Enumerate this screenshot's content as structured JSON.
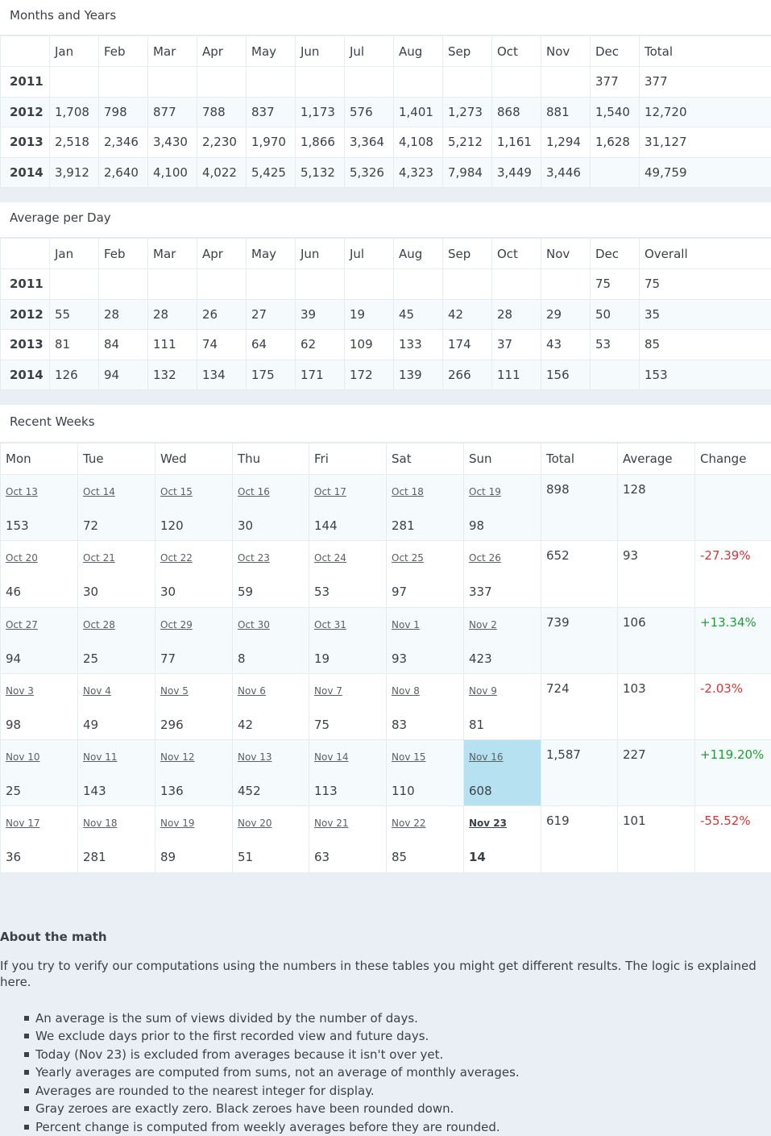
{
  "months_years": {
    "title": "Months and Years",
    "headers": [
      "",
      "Jan",
      "Feb",
      "Mar",
      "Apr",
      "May",
      "Jun",
      "Jul",
      "Aug",
      "Sep",
      "Oct",
      "Nov",
      "Dec",
      "Total"
    ],
    "rows": [
      {
        "year": "2011",
        "cells": [
          "",
          "",
          "",
          "",
          "",
          "",
          "",
          "",
          "",
          "",
          "",
          "377",
          "377"
        ]
      },
      {
        "year": "2012",
        "cells": [
          "1,708",
          "798",
          "877",
          "788",
          "837",
          "1,173",
          "576",
          "1,401",
          "1,273",
          "868",
          "881",
          "1,540",
          "12,720"
        ]
      },
      {
        "year": "2013",
        "cells": [
          "2,518",
          "2,346",
          "3,430",
          "2,230",
          "1,970",
          "1,866",
          "3,364",
          "4,108",
          "5,212",
          "1,161",
          "1,294",
          "1,628",
          "31,127"
        ]
      },
      {
        "year": "2014",
        "cells": [
          "3,912",
          "2,640",
          "4,100",
          "4,022",
          "5,425",
          "5,132",
          "5,326",
          "4,323",
          "7,984",
          "3,449",
          "3,446",
          "",
          "49,759"
        ]
      }
    ]
  },
  "avg_per_day": {
    "title": "Average per Day",
    "headers": [
      "",
      "Jan",
      "Feb",
      "Mar",
      "Apr",
      "May",
      "Jun",
      "Jul",
      "Aug",
      "Sep",
      "Oct",
      "Nov",
      "Dec",
      "Overall"
    ],
    "rows": [
      {
        "year": "2011",
        "cells": [
          "",
          "",
          "",
          "",
          "",
          "",
          "",
          "",
          "",
          "",
          "",
          "75",
          "75"
        ]
      },
      {
        "year": "2012",
        "cells": [
          "55",
          "28",
          "28",
          "26",
          "27",
          "39",
          "19",
          "45",
          "42",
          "28",
          "29",
          "50",
          "35"
        ]
      },
      {
        "year": "2013",
        "cells": [
          "81",
          "84",
          "111",
          "74",
          "64",
          "62",
          "109",
          "133",
          "174",
          "37",
          "43",
          "53",
          "85"
        ]
      },
      {
        "year": "2014",
        "cells": [
          "126",
          "94",
          "132",
          "134",
          "175",
          "171",
          "172",
          "139",
          "266",
          "111",
          "156",
          "",
          "153"
        ]
      }
    ]
  },
  "recent_weeks": {
    "title": "Recent Weeks",
    "headers": [
      "Mon",
      "Tue",
      "Wed",
      "Thu",
      "Fri",
      "Sat",
      "Sun",
      "Total",
      "Average",
      "Change"
    ],
    "weeks": [
      {
        "days": [
          [
            "Oct 13",
            "153"
          ],
          [
            "Oct 14",
            "72"
          ],
          [
            "Oct 15",
            "120"
          ],
          [
            "Oct 16",
            "30"
          ],
          [
            "Oct 17",
            "144"
          ],
          [
            "Oct 18",
            "281"
          ],
          [
            "Oct 19",
            "98"
          ]
        ],
        "total": "898",
        "average": "128",
        "change": ""
      },
      {
        "days": [
          [
            "Oct 20",
            "46"
          ],
          [
            "Oct 21",
            "30"
          ],
          [
            "Oct 22",
            "30"
          ],
          [
            "Oct 23",
            "59"
          ],
          [
            "Oct 24",
            "53"
          ],
          [
            "Oct 25",
            "97"
          ],
          [
            "Oct 26",
            "337"
          ]
        ],
        "total": "652",
        "average": "93",
        "change": "-27.39%"
      },
      {
        "days": [
          [
            "Oct 27",
            "94"
          ],
          [
            "Oct 28",
            "25"
          ],
          [
            "Oct 29",
            "77"
          ],
          [
            "Oct 30",
            "8"
          ],
          [
            "Oct 31",
            "19"
          ],
          [
            "Nov 1",
            "93"
          ],
          [
            "Nov 2",
            "423"
          ]
        ],
        "total": "739",
        "average": "106",
        "change": "+13.34%"
      },
      {
        "days": [
          [
            "Nov 3",
            "98"
          ],
          [
            "Nov 4",
            "49"
          ],
          [
            "Nov 5",
            "296"
          ],
          [
            "Nov 6",
            "42"
          ],
          [
            "Nov 7",
            "75"
          ],
          [
            "Nov 8",
            "83"
          ],
          [
            "Nov 9",
            "81"
          ]
        ],
        "total": "724",
        "average": "103",
        "change": "-2.03%"
      },
      {
        "days": [
          [
            "Nov 10",
            "25"
          ],
          [
            "Nov 11",
            "143"
          ],
          [
            "Nov 12",
            "136"
          ],
          [
            "Nov 13",
            "452"
          ],
          [
            "Nov 14",
            "113"
          ],
          [
            "Nov 15",
            "110"
          ],
          [
            "Nov 16",
            "608"
          ]
        ],
        "total": "1,587",
        "average": "227",
        "change": "+119.20%"
      },
      {
        "days": [
          [
            "Nov 17",
            "36"
          ],
          [
            "Nov 18",
            "281"
          ],
          [
            "Nov 19",
            "89"
          ],
          [
            "Nov 20",
            "51"
          ],
          [
            "Nov 21",
            "63"
          ],
          [
            "Nov 22",
            "85"
          ],
          [
            "Nov 23",
            "14"
          ]
        ],
        "total": "619",
        "average": "101",
        "change": "-55.52%"
      }
    ]
  },
  "about": {
    "title": "About the math",
    "intro": "If you try to verify our computations using the numbers in these tables you might get different results. The logic is explained here.",
    "bullets": [
      "An average is the sum of views divided by the number of days.",
      "We exclude days prior to the first recorded view and future days.",
      "Today (Nov 23) is excluded from averages because it isn't over yet.",
      "Yearly averages are computed from sums, not an average of monthly averages.",
      "Averages are rounded to the nearest integer for display.",
      "Gray zeroes are exactly zero. Black zeroes have been rounded down.",
      "Percent change is computed from weekly averages before they are rounded."
    ]
  },
  "colors": {
    "best_highlight": "#b6e1f0",
    "negative": "#d63638",
    "positive": "#1e9f35"
  }
}
